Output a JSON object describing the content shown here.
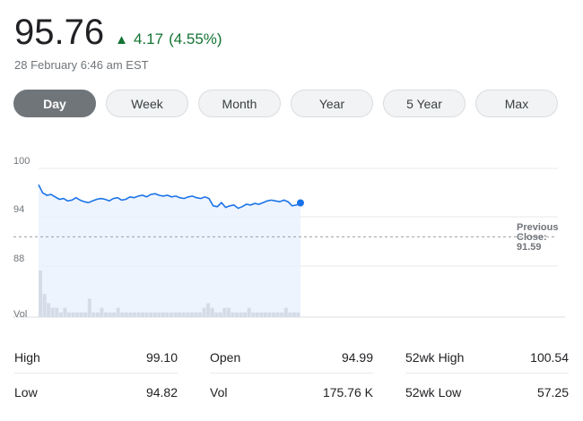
{
  "quote": {
    "price": "95.76",
    "change_arrow": "▲",
    "change": "4.17",
    "change_pct": "(4.55%)",
    "timestamp": "28 February 6:46 am EST",
    "positive_color": "#137333"
  },
  "tabs": [
    {
      "label": "Day",
      "selected": true
    },
    {
      "label": "Week",
      "selected": false
    },
    {
      "label": "Month",
      "selected": false
    },
    {
      "label": "Year",
      "selected": false
    },
    {
      "label": "5 Year",
      "selected": false
    },
    {
      "label": "Max",
      "selected": false
    }
  ],
  "chart_data": {
    "type": "area",
    "y_ticks": [
      "100",
      "94",
      "88"
    ],
    "ylim": [
      82,
      100
    ],
    "volume_label": "Vol",
    "previous_close_label": [
      "Previous",
      "Close:",
      "91.59"
    ],
    "previous_close": 91.59,
    "line_color": "#1a73e8",
    "series": [
      {
        "values": [
          98.0,
          97.0,
          96.7,
          96.8,
          96.5,
          96.2,
          96.3,
          96.0,
          96.1,
          96.4,
          96.1,
          95.9,
          95.8,
          96.0,
          96.2,
          96.3,
          96.2,
          96.0,
          96.3,
          96.4,
          96.1,
          96.2,
          96.5,
          96.4,
          96.6,
          96.7,
          96.5,
          96.8,
          96.9,
          96.7,
          96.6,
          96.7,
          96.5,
          96.6,
          96.4,
          96.3,
          96.5,
          96.6,
          96.4,
          96.3,
          96.5,
          96.3,
          95.4,
          95.3,
          95.8,
          95.2,
          95.4,
          95.5,
          95.1,
          95.3,
          95.6,
          95.5,
          95.7,
          95.6,
          95.8,
          96.0,
          96.1,
          96.0,
          95.9,
          96.1,
          95.9,
          95.4,
          95.5,
          95.76
        ]
      }
    ],
    "volume": [
      10,
      5,
      3,
      2,
      2,
      1,
      2,
      1,
      1,
      1,
      1,
      1,
      4,
      1,
      1,
      2,
      1,
      1,
      1,
      2,
      1,
      1,
      1,
      1,
      1,
      1,
      1,
      1,
      1,
      1,
      1,
      1,
      1,
      1,
      1,
      1,
      1,
      1,
      1,
      1,
      2,
      3,
      2,
      1,
      1,
      2,
      2,
      1,
      1,
      1,
      1,
      2,
      1,
      1,
      1,
      1,
      1,
      1,
      1,
      1,
      2,
      1,
      1,
      1
    ]
  },
  "stats": [
    [
      {
        "label": "High",
        "value": "99.10"
      },
      {
        "label": "Open",
        "value": "94.99"
      },
      {
        "label": "52wk High",
        "value": "100.54"
      }
    ],
    [
      {
        "label": "Low",
        "value": "94.82"
      },
      {
        "label": "Vol",
        "value": "175.76 K"
      },
      {
        "label": "52wk Low",
        "value": "57.25"
      }
    ]
  ]
}
